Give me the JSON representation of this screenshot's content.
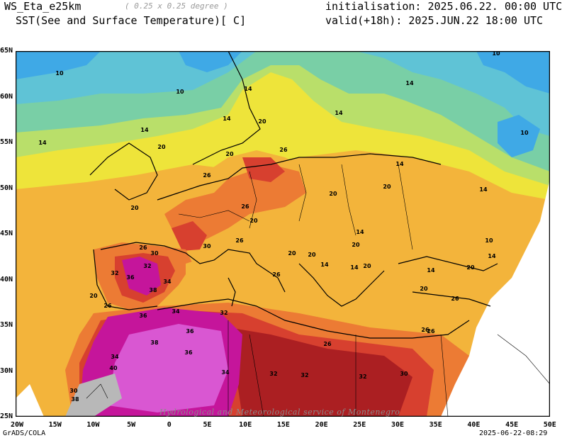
{
  "header": {
    "model": "WS_Eta_e25km",
    "resolution": "( 0.25 x 0.25 degree )",
    "variable": "SST(See and Surface Temperature)[ C]",
    "init": "initialisation: 2025.06.22. 00:00 UTC",
    "valid": "valid(+18h): 2025.JUN.22 18:00 UTC"
  },
  "axes": {
    "lat_ticks": [
      "65N",
      "60N",
      "55N",
      "50N",
      "45N",
      "40N",
      "35N",
      "30N",
      "25N"
    ],
    "lon_ticks": [
      "20W",
      "15W",
      "10W",
      "5W",
      "0",
      "5E",
      "10E",
      "15E",
      "20E",
      "25E",
      "30E",
      "35E",
      "40E",
      "45E",
      "50E"
    ]
  },
  "contour_labels": [
    "10",
    "14",
    "20",
    "26",
    "30",
    "32",
    "34",
    "36",
    "38",
    "40"
  ],
  "footer": {
    "left": "GrADS/COLA",
    "right": "2025-06-22-08:29",
    "credit": "Hydrological and Meteorological service of Montenegro"
  },
  "colors": {
    "c_below10": "#3fa9e6",
    "c_10_14": "#5fc3d6",
    "c_14_17": "#79cfa6",
    "c_17_20": "#b9df6a",
    "c_20_23": "#eee43a",
    "c_23_26": "#f3b43b",
    "c_26_29": "#ec7b34",
    "c_29_32": "#d7402f",
    "c_32_34": "#ab1f22",
    "c_34_36": "#c5159b",
    "c_36_38": "#d957d2",
    "c_above38": "#b8b8b8"
  }
}
